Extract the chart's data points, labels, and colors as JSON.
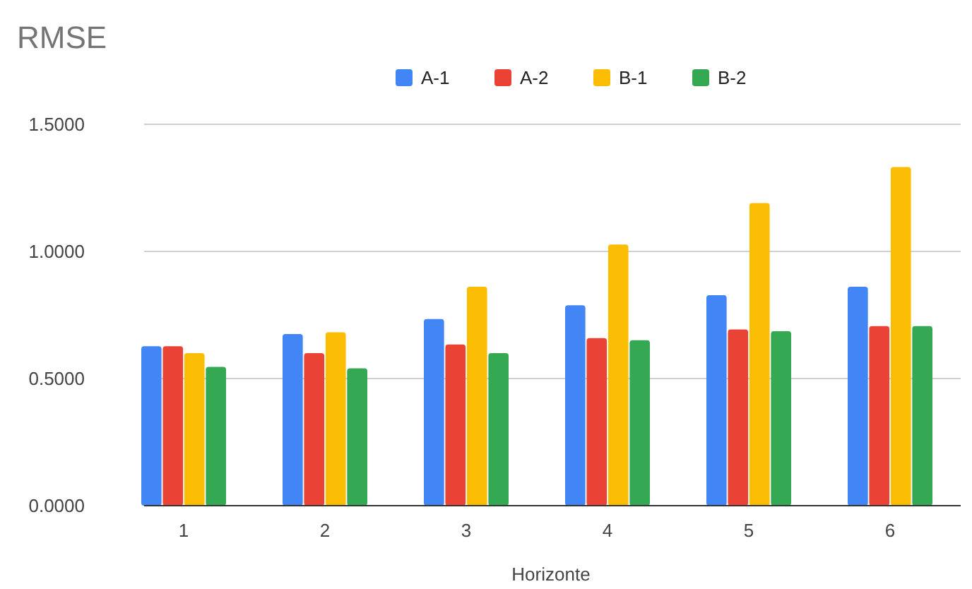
{
  "chart_data": {
    "type": "bar",
    "title": "RMSE",
    "xlabel": "Horizonte",
    "categories": [
      "1",
      "2",
      "3",
      "4",
      "5",
      "6"
    ],
    "series": [
      {
        "name": "A-1",
        "color": "#4285f4",
        "values": [
          0.627,
          0.675,
          0.734,
          0.788,
          0.828,
          0.861
        ]
      },
      {
        "name": "A-2",
        "color": "#ea4335",
        "values": [
          0.627,
          0.6,
          0.634,
          0.659,
          0.693,
          0.706
        ]
      },
      {
        "name": "B-1",
        "color": "#fbbc04",
        "values": [
          0.6,
          0.682,
          0.861,
          1.027,
          1.19,
          1.332
        ]
      },
      {
        "name": "B-2",
        "color": "#34a853",
        "values": [
          0.546,
          0.54,
          0.6,
          0.651,
          0.686,
          0.706
        ]
      }
    ],
    "ylim": [
      0,
      1.5
    ],
    "yticks": [
      {
        "value": 0,
        "label": "0.0000"
      },
      {
        "value": 0.5,
        "label": "0.5000"
      },
      {
        "value": 1,
        "label": "1.0000"
      },
      {
        "value": 1.5,
        "label": "1.5000"
      }
    ],
    "grid": "y",
    "legend": "top"
  }
}
